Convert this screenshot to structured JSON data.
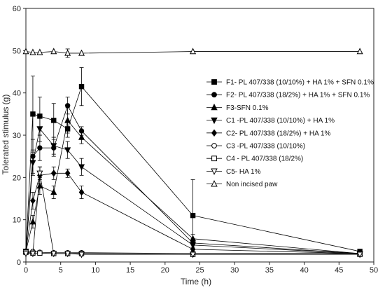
{
  "chart_data": {
    "type": "line",
    "xlabel": "Time (h)",
    "ylabel": "Tolerated stimulus (g)",
    "xlim": [
      0,
      50
    ],
    "ylim": [
      0,
      60
    ],
    "xticks": [
      0,
      5,
      10,
      15,
      20,
      25,
      30,
      35,
      40,
      45,
      50
    ],
    "yticks": [
      0,
      10,
      20,
      30,
      40,
      50,
      60
    ],
    "grid": false,
    "legend_position": "right",
    "series": [
      {
        "name": "F1- PL 407/338 (10/10%) + HA 1% + SFN 0.1%",
        "marker": "square",
        "fill": "filled",
        "x": [
          0,
          1,
          2,
          4,
          6,
          8,
          24,
          48
        ],
        "y": [
          2.5,
          35,
          34.5,
          33.5,
          31.5,
          41.5,
          11,
          2.5
        ],
        "err": [
          0.3,
          9,
          4.5,
          4,
          2,
          4.5,
          8.5,
          0.3
        ]
      },
      {
        "name": "F2- PL 407/338 (18/2%) + HA 1% + SFN 0.1%",
        "marker": "circle",
        "fill": "filled",
        "x": [
          0,
          1,
          2,
          4,
          6,
          8,
          24,
          48
        ],
        "y": [
          2.5,
          25,
          27,
          27,
          37,
          31,
          4.5,
          2
        ],
        "err": [
          0.3,
          4,
          3,
          2,
          2,
          1,
          1,
          0.3
        ]
      },
      {
        "name": "F3-SFN 0.1%",
        "marker": "triangle-up",
        "fill": "filled",
        "x": [
          0,
          1,
          2,
          4,
          6,
          8,
          24,
          48
        ],
        "y": [
          2.5,
          9.5,
          18,
          16.5,
          33.5,
          29.5,
          5.5,
          2
        ],
        "err": [
          0.3,
          1.5,
          2,
          1.5,
          3,
          1.5,
          1,
          0.3
        ]
      },
      {
        "name": "C1 -PL 407/338 (10/10%) + HA 1%",
        "marker": "triangle-down",
        "fill": "filled",
        "x": [
          0,
          1,
          2,
          4,
          6,
          8,
          24,
          48
        ],
        "y": [
          2.5,
          23.5,
          31.5,
          27.5,
          26.5,
          22.5,
          4,
          2
        ],
        "err": [
          0.3,
          3,
          3,
          2,
          2,
          2,
          1,
          0.3
        ]
      },
      {
        "name": "C2- PL 407/338 (18/2%) + HA 1%",
        "marker": "diamond",
        "fill": "filled",
        "x": [
          0,
          1,
          2,
          4,
          6,
          8,
          24,
          48
        ],
        "y": [
          2.5,
          14.5,
          20.5,
          21,
          21,
          16.5,
          3,
          2
        ],
        "err": [
          0.3,
          2,
          2,
          1.5,
          1,
          1.5,
          1,
          0.3
        ]
      },
      {
        "name": "C3 -PL 407/338 (10/10%)",
        "marker": "circle",
        "fill": "open",
        "x": [
          0,
          1,
          2,
          4,
          6,
          8,
          24,
          48
        ],
        "y": [
          2.5,
          2.5,
          2.3,
          2.2,
          2.2,
          2.2,
          2,
          2
        ],
        "err": [
          0.2,
          0.2,
          0.2,
          0.2,
          0.2,
          0.2,
          0.2,
          0.2
        ]
      },
      {
        "name": "C4 - PL 407/338 (18/2%)",
        "marker": "square",
        "fill": "open",
        "x": [
          0,
          1,
          2,
          4,
          6,
          8,
          24,
          48
        ],
        "y": [
          2.3,
          2.1,
          2.1,
          2,
          2,
          2,
          1.8,
          1.8
        ],
        "err": [
          0.2,
          0.2,
          0.2,
          0.2,
          0.2,
          0.2,
          0.2,
          0.2
        ]
      },
      {
        "name": "C5- HA 1%",
        "marker": "triangle-down",
        "fill": "open",
        "x": [
          0,
          1,
          2,
          4,
          6,
          8,
          24,
          48
        ],
        "y": [
          2,
          2,
          21,
          2,
          2,
          1.8,
          1.8,
          1.8
        ],
        "err": [
          0.2,
          0.2,
          1.5,
          0.2,
          0.2,
          0.2,
          0.2,
          0.2
        ]
      },
      {
        "name": "Non incised paw",
        "marker": "triangle-up",
        "fill": "open",
        "x": [
          0,
          1,
          2,
          4,
          6,
          8,
          24,
          48
        ],
        "y": [
          49.8,
          49.6,
          49.6,
          49.8,
          49.4,
          49.4,
          49.8,
          49.8
        ],
        "err": [
          0.3,
          0.3,
          0.3,
          0.3,
          1,
          0.3,
          0.3,
          0.3
        ]
      }
    ]
  }
}
